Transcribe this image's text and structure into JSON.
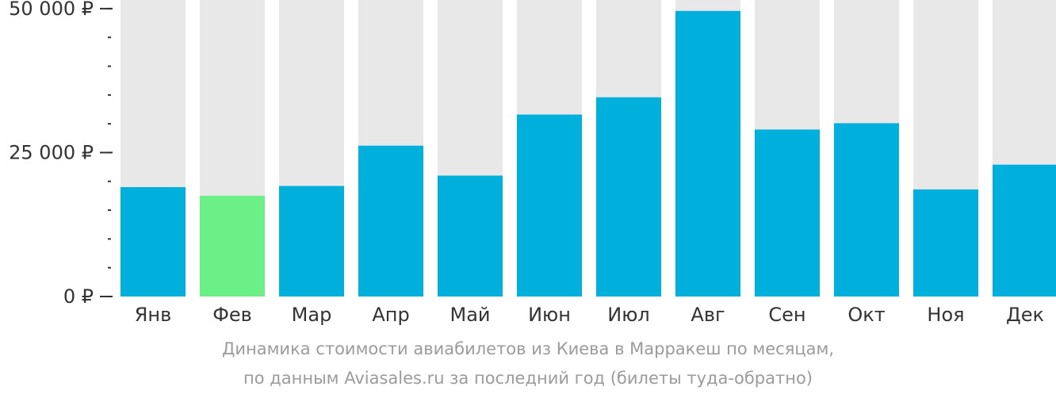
{
  "chart_data": {
    "type": "bar",
    "categories": [
      "Янв",
      "Фев",
      "Мар",
      "Апр",
      "Май",
      "Июн",
      "Июл",
      "Авг",
      "Сен",
      "Окт",
      "Ноя",
      "Дек"
    ],
    "values": [
      19000,
      17500,
      19200,
      26200,
      21000,
      31600,
      34600,
      49600,
      29000,
      30100,
      18600,
      22900
    ],
    "ylim": [
      0,
      51500
    ],
    "yticks": [
      {
        "value": 0,
        "label": "0 ₽"
      },
      {
        "value": 25000,
        "label": "25 000 ₽"
      },
      {
        "value": 50000,
        "label": "50 000 ₽"
      }
    ],
    "minor_tick_step": 5000,
    "highlight_index": 1,
    "colors": {
      "bar": "#00b0dc",
      "highlight": "#6bf087",
      "background_bar": "#e8e8e8",
      "axis": "#333333",
      "text": "#333333"
    }
  },
  "caption": {
    "line1": "Динамика стоимости авиабилетов из Киева в Марракеш по месяцам,",
    "line2": "по данным Aviasales.ru за последний год (билеты туда-обратно)"
  }
}
